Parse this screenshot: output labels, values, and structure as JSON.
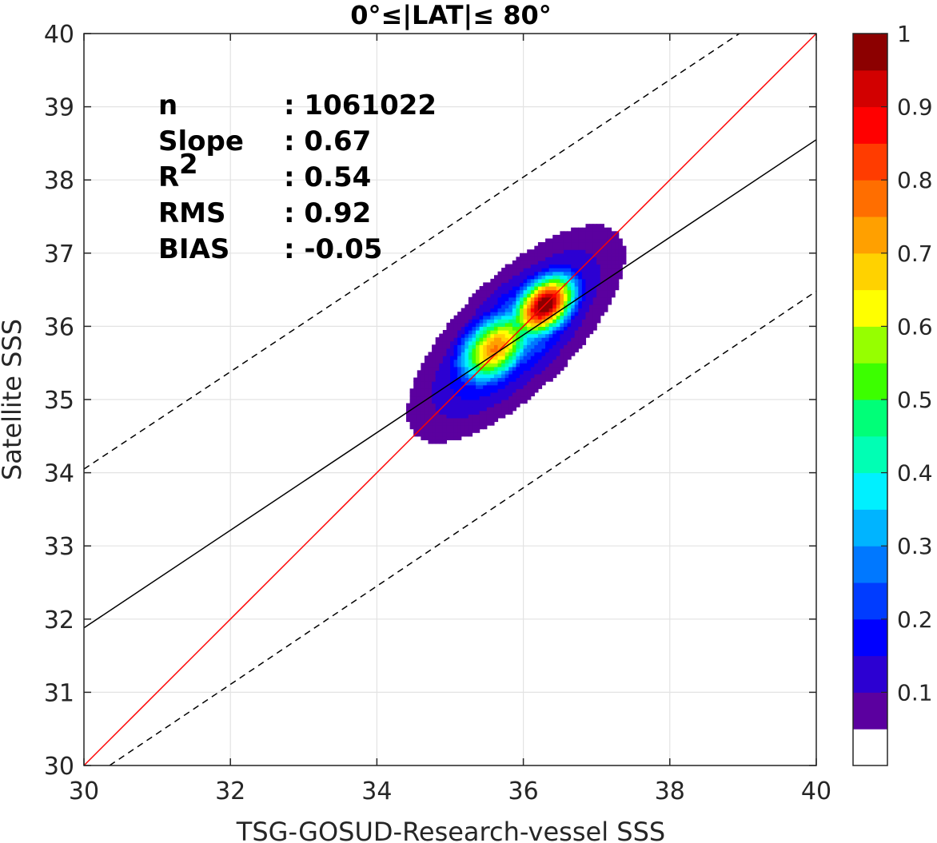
{
  "chart_data": {
    "type": "contour-scatter",
    "title": "0°≤|LAT|≤ 80°",
    "xlabel": "TSG-GOSUD-Research-vessel SSS",
    "ylabel": "Satellite SSS",
    "xlim": [
      30,
      40
    ],
    "ylim": [
      30,
      40
    ],
    "xticks": [
      "30",
      "32",
      "34",
      "36",
      "38",
      "40"
    ],
    "yticks": [
      "30",
      "31",
      "32",
      "33",
      "34",
      "35",
      "36",
      "37",
      "38",
      "39",
      "40"
    ],
    "grid": true,
    "stats": [
      {
        "key": "n",
        "value": ": 1061022"
      },
      {
        "key": "Slope",
        "value": ": 0.67"
      },
      {
        "key": "R",
        "sup": "2",
        "value": ": 0.54"
      },
      {
        "key": "RMS",
        "value": ": 0.92"
      },
      {
        "key": "BIAS",
        "value": ": -0.05"
      }
    ],
    "lines": [
      {
        "name": "identity",
        "color": "#ff0000",
        "dash": "solid",
        "points": [
          [
            30,
            30
          ],
          [
            40,
            40
          ]
        ]
      },
      {
        "name": "regression",
        "color": "#000000",
        "dash": "solid",
        "points": [
          [
            30,
            31.88
          ],
          [
            40,
            38.55
          ]
        ]
      },
      {
        "name": "upper-bound",
        "color": "#000000",
        "dash": "dashed",
        "points": [
          [
            30,
            34.05
          ],
          [
            38.95,
            40
          ]
        ]
      },
      {
        "name": "lower-bound",
        "color": "#000000",
        "dash": "dashed",
        "points": [
          [
            30.35,
            30
          ],
          [
            40,
            36.48
          ]
        ]
      }
    ],
    "density_peaks": [
      {
        "x": 36.3,
        "y": 36.3,
        "value": 1.0
      },
      {
        "x": 35.6,
        "y": 35.7,
        "value": 0.75
      }
    ],
    "colorbar": {
      "ticks": [
        "0.1",
        "0.2",
        "0.3",
        "0.4",
        "0.5",
        "0.6",
        "0.7",
        "0.8",
        "0.9",
        "1"
      ],
      "colors": [
        "#ffffff",
        "#5b009f",
        "#2c00d2",
        "#0000ff",
        "#003cff",
        "#0078ff",
        "#00b4ff",
        "#00f0ff",
        "#00ffb4",
        "#00ff78",
        "#3cff00",
        "#96ff00",
        "#ffff00",
        "#ffd200",
        "#ffa000",
        "#ff6e00",
        "#ff3c00",
        "#ff0000",
        "#d20000",
        "#8c0000"
      ]
    }
  }
}
